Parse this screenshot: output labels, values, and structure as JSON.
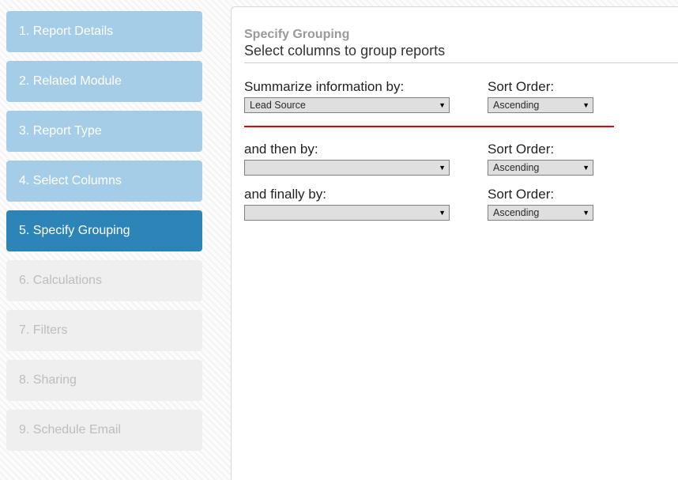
{
  "sidebar": {
    "steps": [
      {
        "num": "1.",
        "label": "Report Details",
        "state": "completed"
      },
      {
        "num": "2.",
        "label": "Related Module",
        "state": "completed"
      },
      {
        "num": "3.",
        "label": "Report Type",
        "state": "completed"
      },
      {
        "num": "4.",
        "label": "Select Columns",
        "state": "completed"
      },
      {
        "num": "5.",
        "label": "Specify Grouping",
        "state": "active"
      },
      {
        "num": "6.",
        "label": "Calculations",
        "state": "upcoming"
      },
      {
        "num": "7.",
        "label": "Filters",
        "state": "upcoming"
      },
      {
        "num": "8.",
        "label": "Sharing",
        "state": "upcoming"
      },
      {
        "num": "9.",
        "label": "Schedule Email",
        "state": "upcoming"
      }
    ]
  },
  "panel": {
    "title": "Specify Grouping",
    "subtitle": "Select columns to group reports"
  },
  "grouping": {
    "rows": [
      {
        "label": "Summarize information by:",
        "value": "Lead Source",
        "sortLabel": "Sort Order:",
        "sortValue": "Ascending",
        "highlight": true
      },
      {
        "label": "and then by:",
        "value": "",
        "sortLabel": "Sort Order:",
        "sortValue": "Ascending",
        "highlight": false
      },
      {
        "label": "and finally by:",
        "value": "",
        "sortLabel": "Sort Order:",
        "sortValue": "Ascending",
        "highlight": false
      }
    ]
  },
  "colors": {
    "step_completed_bg": "#a5cde8",
    "step_active_bg": "#2d84b7",
    "step_upcoming_bg": "#efefef",
    "highlight_divider": "#d40a0a"
  }
}
